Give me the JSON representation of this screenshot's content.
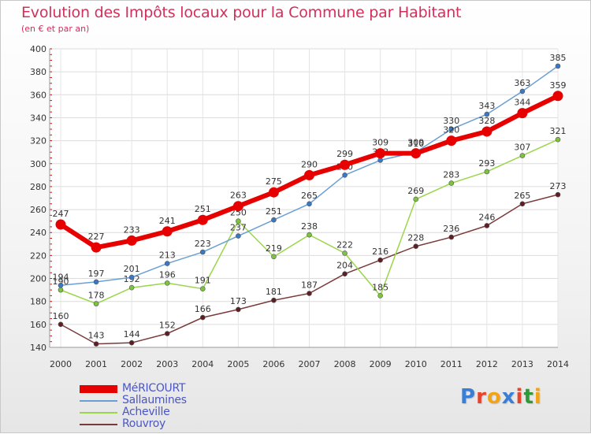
{
  "title": "Evolution des Impôts locaux pour la Commune par Habitant",
  "subtitle": "(en € et par an)",
  "logo": {
    "letters": [
      "P",
      "r",
      "o",
      "x",
      "i",
      "t",
      "i"
    ],
    "colors": [
      "#3b7fd4",
      "#e8432b",
      "#f2a316",
      "#3b7fd4",
      "#e8432b",
      "#2e9a3a",
      "#f2a316"
    ]
  },
  "chart_data": {
    "type": "line",
    "title": "Evolution des Impôts locaux pour la Commune par Habitant",
    "subtitle": "(en € et par an)",
    "x": [
      "2000",
      "2001",
      "2002",
      "2003",
      "2004",
      "2005",
      "2006",
      "2007",
      "2008",
      "2009",
      "2010",
      "2011",
      "2012",
      "2013",
      "2014"
    ],
    "ylim": [
      140,
      400
    ],
    "yticks": [
      140,
      160,
      180,
      200,
      220,
      240,
      260,
      280,
      300,
      320,
      340,
      360,
      380,
      400
    ],
    "grid": true,
    "legend_position": "bottom-left",
    "series": [
      {
        "name": "MéRICOURT",
        "color": "#e60000",
        "marker": "#e60000",
        "values": [
          247,
          227,
          233,
          241,
          251,
          263,
          275,
          290,
          299,
          309,
          309,
          320,
          328,
          344,
          359
        ]
      },
      {
        "name": "Sallaumines",
        "color": "#6a9fd4",
        "marker": "#3a78c4",
        "values": [
          194,
          197,
          201,
          213,
          223,
          237,
          251,
          265,
          290,
          303,
          310,
          330,
          343,
          363,
          385
        ]
      },
      {
        "name": "Acheville",
        "color": "#9ad64a",
        "marker": "#7cc43c",
        "values": [
          190,
          178,
          192,
          196,
          191,
          250,
          219,
          238,
          222,
          185,
          269,
          283,
          293,
          307,
          321
        ]
      },
      {
        "name": "Rouvroy",
        "color": "#7a3a3a",
        "marker": "#5e1f24",
        "values": [
          160,
          143,
          144,
          152,
          166,
          173,
          181,
          187,
          204,
          216,
          228,
          236,
          246,
          265,
          273
        ]
      }
    ]
  }
}
